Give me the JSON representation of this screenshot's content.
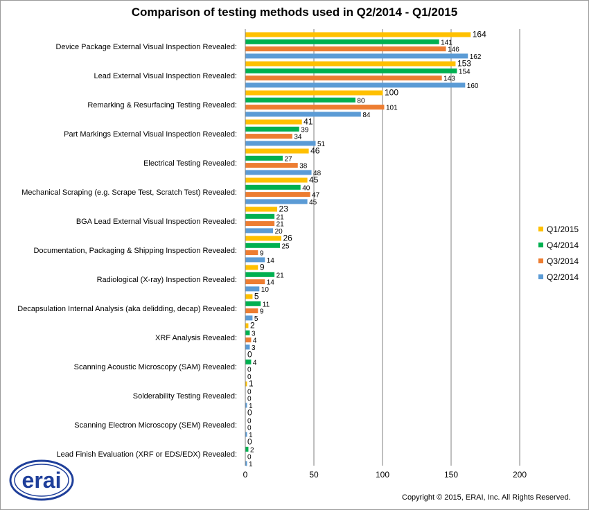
{
  "logo_text": "erai",
  "copyright": "Copyright © 2015, ERAI, Inc.  All Rights Reserved.",
  "chart_data": {
    "type": "bar",
    "orientation": "horizontal",
    "title": "Comparison of testing methods used in Q2/2014 - Q1/2015",
    "xlim": [
      0,
      200
    ],
    "xticks": [
      0,
      50,
      100,
      150,
      200
    ],
    "grid": true,
    "legend_position": "right",
    "categories": [
      "Device Package External Visual Inspection Revealed:",
      "Lead External Visual Inspection Revealed:",
      "Remarking & Resurfacing Testing Revealed:",
      "Part Markings External Visual Inspection Revealed:",
      "Electrical Testing Revealed:",
      "Mechanical Scraping (e.g. Scrape Test, Scratch Test) Revealed:",
      "BGA Lead External Visual Inspection Revealed:",
      "Documentation, Packaging & Shipping Inspection Revealed:",
      "Radiological (X-ray) Inspection Revealed:",
      "Decapsulation Internal Analysis (aka delidding, decap) Revealed:",
      "XRF Analysis Revealed:",
      "Scanning Acoustic Microscopy (SAM) Revealed:",
      "Solderability Testing Revealed:",
      "Scanning Electron Microscopy (SEM) Revealed:",
      "Lead Finish Evaluation  (XRF or EDS/EDX)  Revealed:"
    ],
    "series": [
      {
        "name": "Q1/2015",
        "color": "#FFC000",
        "values": [
          164,
          153,
          100,
          41,
          46,
          45,
          23,
          26,
          9,
          5,
          2,
          0,
          1,
          0,
          0
        ]
      },
      {
        "name": "Q4/2014",
        "color": "#00B050",
        "values": [
          141,
          154,
          80,
          39,
          27,
          40,
          21,
          25,
          21,
          11,
          3,
          4,
          0,
          0,
          2
        ]
      },
      {
        "name": "Q3/2014",
        "color": "#ED7D31",
        "values": [
          146,
          143,
          101,
          34,
          38,
          47,
          21,
          9,
          14,
          9,
          4,
          0,
          0,
          0,
          0
        ]
      },
      {
        "name": "Q2/2014",
        "color": "#5B9BD5",
        "values": [
          162,
          160,
          84,
          51,
          48,
          45,
          20,
          14,
          10,
          5,
          3,
          0,
          1,
          1,
          1
        ]
      }
    ]
  }
}
